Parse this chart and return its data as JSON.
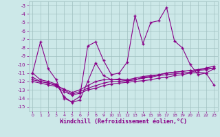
{
  "xlabel": "Windchill (Refroidissement éolien,°C)",
  "background_color": "#cce8e8",
  "grid_color": "#a0c0c0",
  "line_color": "#880088",
  "xlim": [
    -0.5,
    23.5
  ],
  "ylim": [
    -15.5,
    -2.5
  ],
  "yticks": [
    -3,
    -4,
    -5,
    -6,
    -7,
    -8,
    -9,
    -10,
    -11,
    -12,
    -13,
    -14,
    -15
  ],
  "xticks": [
    0,
    1,
    2,
    3,
    4,
    5,
    6,
    7,
    8,
    9,
    10,
    11,
    12,
    13,
    14,
    15,
    16,
    17,
    18,
    19,
    20,
    21,
    22,
    23
  ],
  "series1": [
    -11,
    -7.3,
    -10.5,
    -11.8,
    -14.0,
    -14.4,
    -13.8,
    -7.8,
    -7.3,
    -9.5,
    -11.2,
    -11.0,
    -9.7,
    -4.2,
    -7.5,
    -5.0,
    -4.8,
    -3.2,
    -7.2,
    -8.0,
    -10.0,
    -11.2,
    -11.0,
    -10.5
  ],
  "series2": [
    -11.0,
    -11.8,
    -12.0,
    -12.3,
    -13.8,
    -14.5,
    -14.2,
    -12.0,
    -9.8,
    -11.3,
    -11.8,
    -11.8,
    -11.9,
    -11.8,
    -11.5,
    -11.4,
    -11.2,
    -11.0,
    -10.9,
    -10.8,
    -10.7,
    -10.6,
    -10.4,
    -10.2
  ],
  "series3": [
    -11.5,
    -12.0,
    -12.2,
    -12.5,
    -12.9,
    -13.3,
    -13.0,
    -12.5,
    -12.0,
    -11.8,
    -11.8,
    -11.7,
    -11.8,
    -11.6,
    -11.4,
    -11.3,
    -11.2,
    -11.0,
    -10.9,
    -10.8,
    -10.7,
    -10.6,
    -10.5,
    -10.4
  ],
  "series4": [
    -11.8,
    -12.0,
    -12.2,
    -12.4,
    -13.0,
    -13.5,
    -13.2,
    -12.8,
    -12.5,
    -12.2,
    -12.0,
    -12.0,
    -11.9,
    -11.8,
    -11.6,
    -11.5,
    -11.3,
    -11.2,
    -11.1,
    -11.0,
    -10.9,
    -10.7,
    -10.6,
    -10.4
  ],
  "series5": [
    -12.0,
    -12.2,
    -12.4,
    -12.6,
    -13.2,
    -13.6,
    -13.4,
    -13.0,
    -12.8,
    -12.5,
    -12.3,
    -12.2,
    -12.1,
    -12.0,
    -11.9,
    -11.8,
    -11.6,
    -11.5,
    -11.3,
    -11.2,
    -11.0,
    -10.9,
    -11.0,
    -12.4
  ]
}
